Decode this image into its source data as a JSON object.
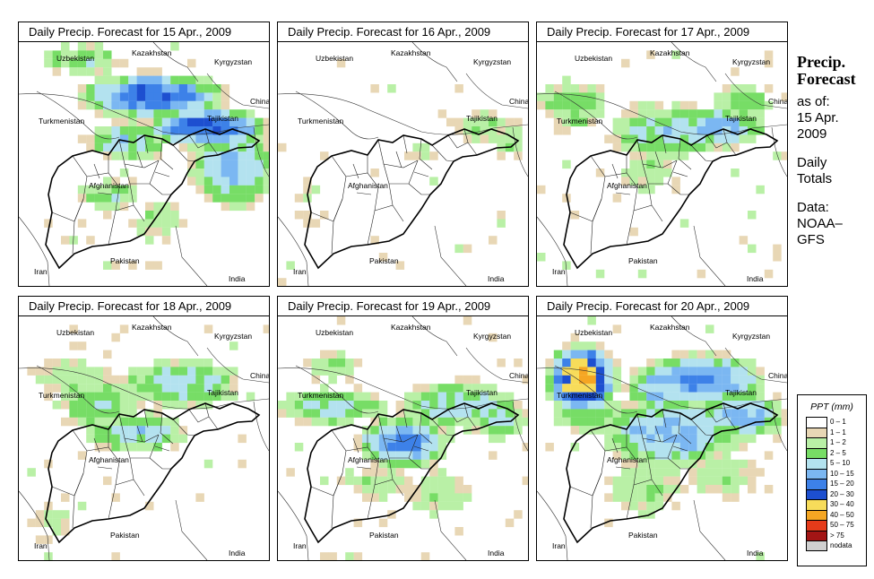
{
  "panels": [
    {
      "title": "Daily Precip. Forecast for  15 Apr., 2009",
      "pattern": 0
    },
    {
      "title": "Daily Precip. Forecast for  16 Apr., 2009",
      "pattern": 1
    },
    {
      "title": "Daily Precip. Forecast for  17 Apr., 2009",
      "pattern": 2
    },
    {
      "title": "Daily Precip. Forecast for  18 Apr., 2009",
      "pattern": 3
    },
    {
      "title": "Daily Precip. Forecast for  19 Apr., 2009",
      "pattern": 4
    },
    {
      "title": "Daily Precip. Forecast for  20 Apr., 2009",
      "pattern": 5
    }
  ],
  "map_labels": {
    "kazakhstan": "Kazakhstan",
    "uzbekistan": "Uzbekistan",
    "kyrgyzstan": "Kyrgyzstan",
    "china": "China",
    "turkmenistan": "Turkmenistan",
    "tajikistan": "Tajikistan",
    "afghanistan": "Afghanistan",
    "iran": "Iran",
    "pakistan": "Pakistan",
    "india": "India"
  },
  "side": {
    "heading1": "Precip.",
    "heading2": "Forecast",
    "asof": "as of:",
    "date1": "15 Apr.",
    "date2": "2009",
    "totals1": "Daily",
    "totals2": "Totals",
    "data1": "Data:",
    "data2": "NOAA–",
    "data3": "GFS"
  },
  "legend": {
    "title": "PPT (mm)",
    "items": [
      {
        "label": "0 – 1",
        "color": "#ffffff"
      },
      {
        "label": "1 – 1",
        "color": "#e8d7b5"
      },
      {
        "label": "1 – 2",
        "color": "#b9f0a6"
      },
      {
        "label": "2 – 5",
        "color": "#77dd66"
      },
      {
        "label": "5 – 10",
        "color": "#b3e2ef"
      },
      {
        "label": "10 – 15",
        "color": "#7bb7f2"
      },
      {
        "label": "15 – 20",
        "color": "#3d81e8"
      },
      {
        "label": "20 – 30",
        "color": "#1d4fd0"
      },
      {
        "label": "30 – 40",
        "color": "#f7dc5a"
      },
      {
        "label": "40 – 50",
        "color": "#f5a623"
      },
      {
        "label": "50 – 75",
        "color": "#e53b1a"
      },
      {
        "label": "> 75",
        "color": "#a31515"
      },
      {
        "label": "nodata",
        "color": "#d0d0d0"
      }
    ]
  }
}
